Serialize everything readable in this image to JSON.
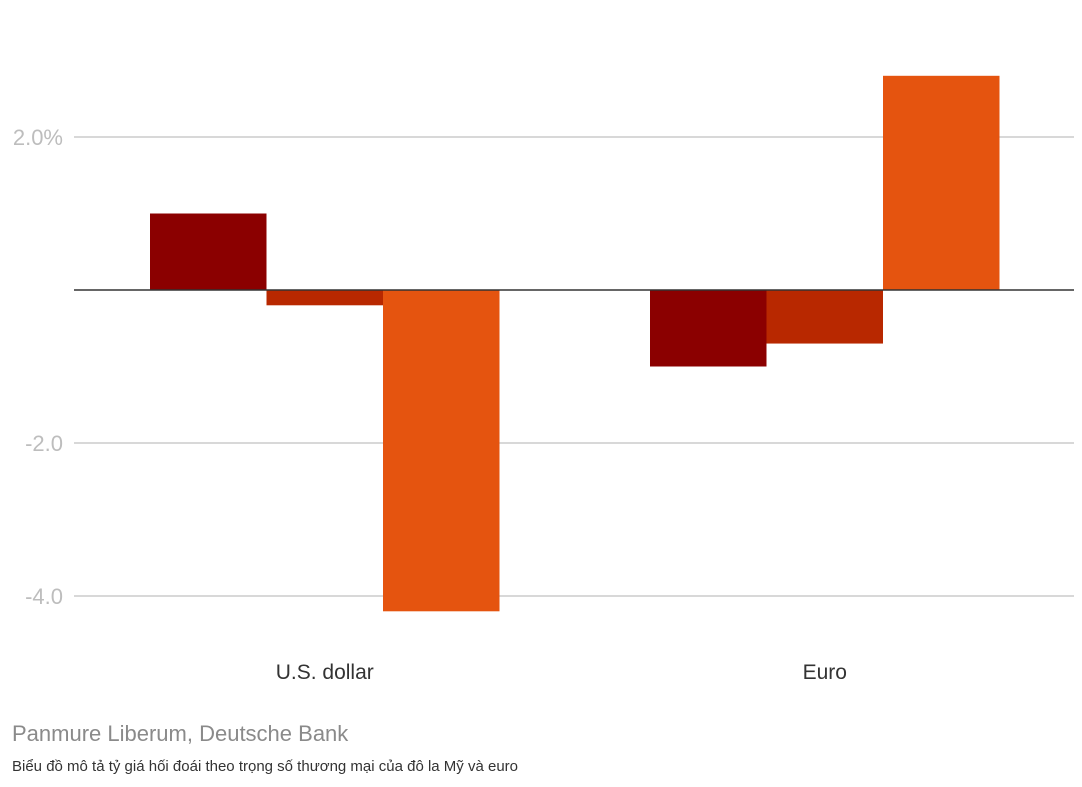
{
  "chart_data": {
    "type": "bar",
    "categories": [
      "U.S. dollar",
      "Euro"
    ],
    "series": [
      {
        "values": [
          1.0,
          -1.0
        ],
        "color": "#8b0000"
      },
      {
        "values": [
          -0.2,
          -0.7
        ],
        "color": "#b82800"
      },
      {
        "values": [
          -4.2,
          2.8
        ],
        "color": "#e5540f"
      }
    ],
    "yticks": [
      {
        "value": 2,
        "label": "2.0%"
      },
      {
        "value": -2,
        "label": "-2.0"
      },
      {
        "value": -4,
        "label": "-4.0"
      }
    ],
    "ylim": [
      -4.7,
      3.6
    ],
    "grid": true,
    "zero_line_color": "#333333",
    "grid_color": "#cccccc"
  },
  "source": "Panmure Liberum, Deutsche Bank",
  "caption": "Biểu đồ mô tả tỷ giá hối đoái theo trọng số thương mại của đô la Mỹ và euro"
}
